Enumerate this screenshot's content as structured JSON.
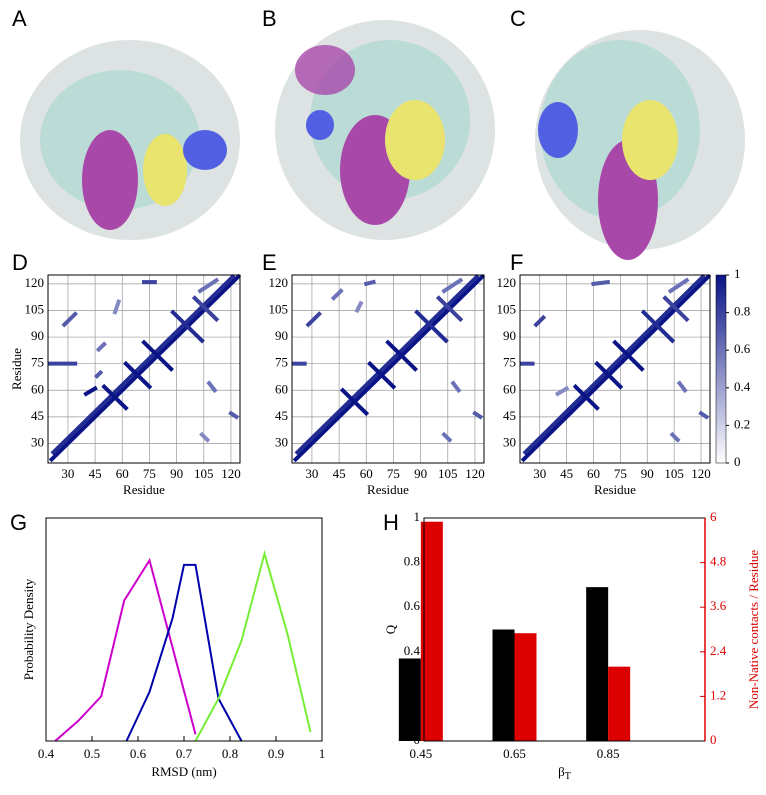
{
  "panels": {
    "labels": [
      "A",
      "B",
      "C",
      "D",
      "E",
      "F",
      "G",
      "H"
    ]
  },
  "chart_data": [
    {
      "type": "heatmap",
      "xlabel": "Residue",
      "ylabel": "Residue",
      "xlim": [
        19,
        125
      ],
      "ylim": [
        19,
        125
      ],
      "xticks": [
        30,
        45,
        60,
        75,
        90,
        105,
        120
      ],
      "yticks": [
        30,
        45,
        60,
        75,
        90,
        105,
        120
      ],
      "segments": [
        [
          21,
          21,
          124,
          124,
          1
        ],
        [
          22,
          25,
          121,
          124,
          0.9
        ],
        [
          50,
          62,
          62,
          50,
          1
        ],
        [
          62,
          75,
          75,
          62,
          1
        ],
        [
          72,
          87,
          87,
          72,
          1
        ],
        [
          88,
          104,
          104,
          88,
          0.9
        ],
        [
          100,
          112,
          112,
          100,
          0.8
        ],
        [
          20,
          75,
          34,
          75,
          0.8
        ],
        [
          40,
          58,
          45,
          61,
          1
        ],
        [
          46,
          68,
          48,
          70,
          0.7
        ],
        [
          47,
          83,
          50,
          86,
          0.6
        ],
        [
          28,
          97,
          34,
          103,
          0.7
        ],
        [
          108,
          64,
          111,
          60,
          0.6
        ],
        [
          120,
          47,
          123,
          45,
          0.7
        ],
        [
          72,
          121,
          78,
          121,
          0.8
        ],
        [
          103,
          116,
          112,
          122,
          0.6
        ],
        [
          104,
          35,
          107,
          32,
          0.5
        ],
        [
          56,
          104,
          58,
          110,
          0.5
        ]
      ]
    },
    {
      "type": "heatmap",
      "xlabel": "Residue",
      "xlim": [
        19,
        125
      ],
      "ylim": [
        19,
        125
      ],
      "xticks": [
        30,
        45,
        60,
        75,
        90,
        105,
        120
      ],
      "yticks": [
        30,
        45,
        60,
        75,
        90,
        105,
        120
      ],
      "segments": [
        [
          21,
          21,
          124,
          124,
          1
        ],
        [
          22,
          25,
          121,
          124,
          0.9
        ],
        [
          47,
          60,
          60,
          47,
          1
        ],
        [
          62,
          75,
          75,
          62,
          1
        ],
        [
          72,
          87,
          87,
          72,
          1
        ],
        [
          88,
          104,
          104,
          88,
          0.9
        ],
        [
          100,
          112,
          112,
          100,
          0.8
        ],
        [
          20,
          75,
          26,
          75,
          0.8
        ],
        [
          28,
          97,
          34,
          103,
          0.8
        ],
        [
          42,
          112,
          46,
          116,
          0.6
        ],
        [
          108,
          64,
          111,
          60,
          0.6
        ],
        [
          120,
          47,
          123,
          45,
          0.7
        ],
        [
          60,
          120,
          64,
          121,
          0.7
        ],
        [
          103,
          116,
          112,
          122,
          0.6
        ],
        [
          103,
          35,
          106,
          32,
          0.6
        ],
        [
          55,
          105,
          57,
          109,
          0.5
        ]
      ]
    },
    {
      "type": "heatmap",
      "xlabel": "Residue",
      "xlim": [
        19,
        125
      ],
      "ylim": [
        19,
        125
      ],
      "xticks": [
        30,
        45,
        60,
        75,
        90,
        105,
        120
      ],
      "yticks": [
        30,
        45,
        60,
        75,
        90,
        105,
        120
      ],
      "colorbar_ticks": [
        0,
        0.2,
        0.4,
        0.6,
        0.8,
        1
      ],
      "segments": [
        [
          21,
          21,
          124,
          124,
          1
        ],
        [
          22,
          25,
          121,
          124,
          0.9
        ],
        [
          50,
          62,
          62,
          50,
          1
        ],
        [
          62,
          75,
          75,
          62,
          1
        ],
        [
          72,
          87,
          87,
          72,
          1
        ],
        [
          88,
          104,
          104,
          88,
          0.9
        ],
        [
          100,
          112,
          112,
          100,
          0.8
        ],
        [
          20,
          75,
          26,
          75,
          0.8
        ],
        [
          28,
          97,
          32,
          101,
          0.8
        ],
        [
          40,
          58,
          45,
          61,
          0.5
        ],
        [
          108,
          64,
          111,
          60,
          0.6
        ],
        [
          120,
          47,
          123,
          45,
          0.7
        ],
        [
          60,
          120,
          68,
          121,
          0.7
        ],
        [
          103,
          116,
          112,
          122,
          0.6
        ],
        [
          104,
          35,
          107,
          32,
          0.6
        ]
      ]
    },
    {
      "type": "line",
      "xlabel": "RMSD (nm)",
      "ylabel": "Probability Density",
      "xlim": [
        0.4,
        1
      ],
      "ylim": [
        0,
        1
      ],
      "xticks": [
        0.4,
        0.5,
        0.6,
        0.7,
        0.8,
        0.9,
        1
      ],
      "series": [
        {
          "color": "#cc00cc",
          "x": [
            0.42,
            0.47,
            0.52,
            0.57,
            0.625,
            0.675,
            0.725
          ],
          "values": [
            0,
            0.09,
            0.2,
            0.63,
            0.81,
            0.42,
            0.03
          ]
        },
        {
          "color": "#0000aa",
          "x": [
            0.575,
            0.625,
            0.675,
            0.7,
            0.725,
            0.775,
            0.825
          ],
          "values": [
            0,
            0.22,
            0.55,
            0.79,
            0.79,
            0.19,
            0
          ]
        },
        {
          "color": "#77ee33",
          "x": [
            0.725,
            0.775,
            0.825,
            0.875,
            0.925,
            0.975
          ],
          "values": [
            0,
            0.19,
            0.45,
            0.84,
            0.48,
            0.04
          ]
        }
      ]
    },
    {
      "type": "bar",
      "xlabel": "β",
      "xlabel_sub": "T",
      "ylabel": "Q",
      "y2label": "Non-Native contacts / Residue",
      "categories": [
        "0.45",
        "0.65",
        "0.85"
      ],
      "ylim": [
        0,
        1
      ],
      "yticks": [
        0,
        0.2,
        0.4,
        0.6,
        0.8,
        1
      ],
      "y2lim": [
        0,
        6
      ],
      "y2ticks": [
        0,
        1.2,
        2.4,
        3.6,
        4.8,
        6
      ],
      "series": [
        {
          "color": "#000000",
          "values": [
            0.37,
            0.5,
            0.69
          ]
        },
        {
          "color": "#dd0000",
          "axis": "y2",
          "values": [
            5.9,
            2.9,
            2.0
          ]
        }
      ]
    }
  ]
}
